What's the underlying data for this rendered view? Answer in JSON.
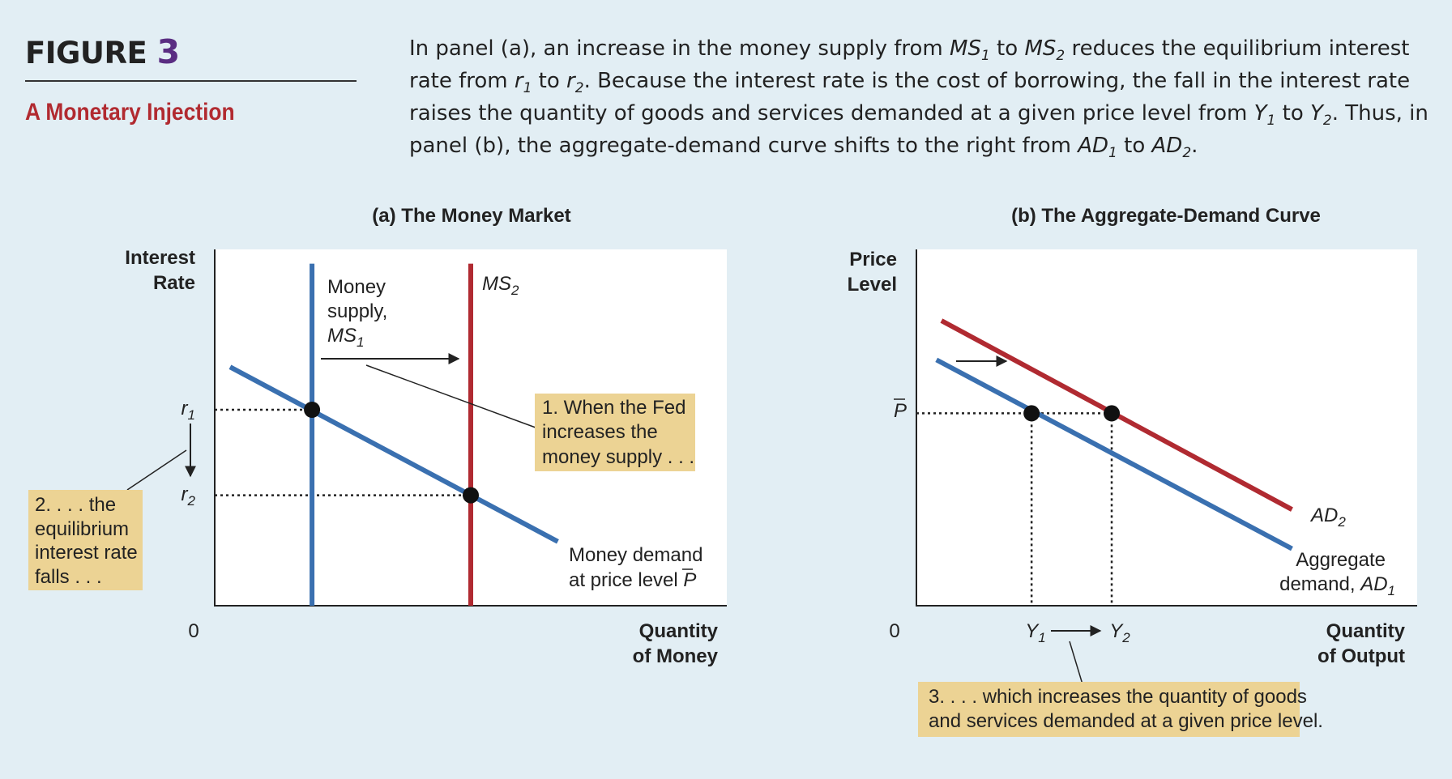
{
  "header": {
    "figure_label": "FIGURE",
    "figure_number": "3",
    "title": "A Monetary Injection"
  },
  "caption": {
    "s1": "In panel (a), an increase in the money supply from ",
    "ms": "MS",
    "sub1": "1",
    "s2": " to ",
    "sub2": "2",
    "s3": " reduces the equilibrium interest rate from ",
    "r": "r",
    "s4": " to ",
    "s5": ". Because the interest rate is the cost of borrowing, the fall in the interest rate raises the quantity of goods and services demanded at a given price level from ",
    "y": "Y",
    "s6": " to ",
    "s7": ". Thus, in panel (b), the aggregate-demand curve shifts to the right from ",
    "ad": "AD",
    "s8": " to ",
    "s9": "."
  },
  "colors": {
    "background": "#e2eef4",
    "plot_bg": "#ffffff",
    "blue_line": "#3a70b0",
    "red_line": "#b02a31",
    "callout_bg": "#ecd394",
    "title_red": "#b12a30",
    "figure_number": "#5a2d82"
  },
  "chart_data": [
    {
      "type": "line",
      "title": "(a) The Money Market",
      "ylabel": [
        "Interest",
        "Rate"
      ],
      "xlabel": [
        "Quantity",
        "of Money"
      ],
      "origin_label": "0",
      "xlim": [
        0,
        100
      ],
      "ylim": [
        0,
        100
      ],
      "series": [
        {
          "name": "Money demand at price level P̄",
          "color": "#3a70b0",
          "points": [
            {
              "x": 3,
              "y": 67
            },
            {
              "x": 67,
              "y": 18
            }
          ]
        },
        {
          "name": "Money supply, MS1",
          "color": "#3a70b0",
          "points": [
            {
              "x": 19,
              "y": 0
            },
            {
              "x": 19,
              "y": 96
            }
          ]
        },
        {
          "name": "MS2",
          "color": "#b02a31",
          "points": [
            {
              "x": 50,
              "y": 0
            },
            {
              "x": 50,
              "y": 96
            }
          ]
        }
      ],
      "equilibria": [
        {
          "label": "r1",
          "x": 19,
          "y": 55
        },
        {
          "label": "r2",
          "x": 50,
          "y": 31
        }
      ],
      "ticks": {
        "r1_main": "r",
        "r1_sub": "1",
        "r2_main": "r",
        "r2_sub": "2"
      },
      "curve_labels": {
        "ms1_line1": "Money",
        "ms1_line2": "supply,",
        "ms1_main": "MS",
        "ms1_sub": "1",
        "ms2_main": "MS",
        "ms2_sub": "2",
        "md_line1": "Money demand",
        "md_line2": "at price level ",
        "md_p": "P"
      },
      "callouts": {
        "fed": [
          "1. When the Fed",
          "increases the",
          "money supply . . ."
        ],
        "falls": [
          "2. . . . the",
          "equilibrium",
          "interest rate",
          "falls . . ."
        ]
      }
    },
    {
      "type": "line",
      "title": "(b) The Aggregate-Demand Curve",
      "ylabel": [
        "Price",
        "Level"
      ],
      "xlabel": [
        "Quantity",
        "of Output"
      ],
      "origin_label": "0",
      "xlim": [
        0,
        100
      ],
      "ylim": [
        0,
        100
      ],
      "series": [
        {
          "name": "Aggregate demand, AD1",
          "color": "#3a70b0",
          "points": [
            {
              "x": 4,
              "y": 69
            },
            {
              "x": 75,
              "y": 16
            }
          ]
        },
        {
          "name": "AD2",
          "color": "#b02a31",
          "points": [
            {
              "x": 5,
              "y": 80
            },
            {
              "x": 75,
              "y": 27
            }
          ]
        }
      ],
      "equilibria": [
        {
          "label": "Y1",
          "x": 23,
          "y": 54
        },
        {
          "label": "Y2",
          "x": 39,
          "y": 54
        }
      ],
      "ticks": {
        "p_label": "P",
        "y1_main": "Y",
        "y1_sub": "1",
        "y2_main": "Y",
        "y2_sub": "2"
      },
      "curve_labels": {
        "ad1_line1": "Aggregate",
        "ad1_line2": "demand, ",
        "ad1_main": "AD",
        "ad1_sub": "1",
        "ad2_main": "AD",
        "ad2_sub": "2"
      },
      "callouts": {
        "output": [
          "3. . . . which increases the quantity of goods",
          "and services demanded at a given price level."
        ]
      }
    }
  ]
}
